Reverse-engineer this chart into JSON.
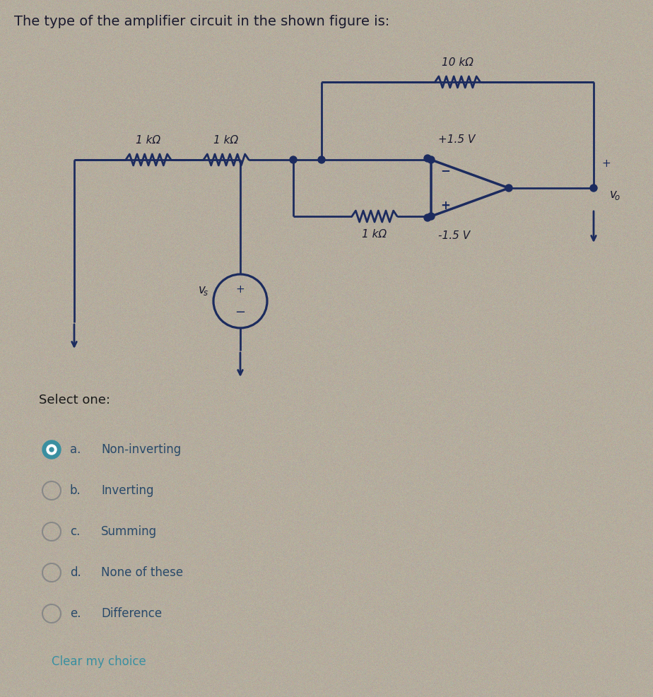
{
  "title": "The type of the amplifier circuit in the shown figure is:",
  "bg_color": "#b5ad9e",
  "text_color": "#1a1a2e",
  "circuit_color": "#1c2b5e",
  "select_one_text": "Select one:",
  "options": [
    {
      "label": "a.",
      "text": "Non-inverting",
      "selected": true
    },
    {
      "label": "b.",
      "text": "Inverting",
      "selected": false
    },
    {
      "label": "c.",
      "text": "Summing",
      "selected": false
    },
    {
      "label": "d.",
      "text": "None of these",
      "selected": false
    },
    {
      "label": "e.",
      "text": "Difference",
      "selected": false
    }
  ],
  "clear_text": "Clear my choice",
  "clear_color": "#3a8fa0",
  "resistor_labels": [
    "1 kΩ",
    "1 kΩ",
    "1 kΩ",
    "10 kΩ"
  ],
  "voltage_labels": [
    "+1.5 V",
    "-1.5 V"
  ],
  "selected_radio_color": "#3a8fa0",
  "unselected_radio_color": "#888888",
  "option_text_color": "#2a4a6a",
  "select_text_color": "#1a1a1a"
}
